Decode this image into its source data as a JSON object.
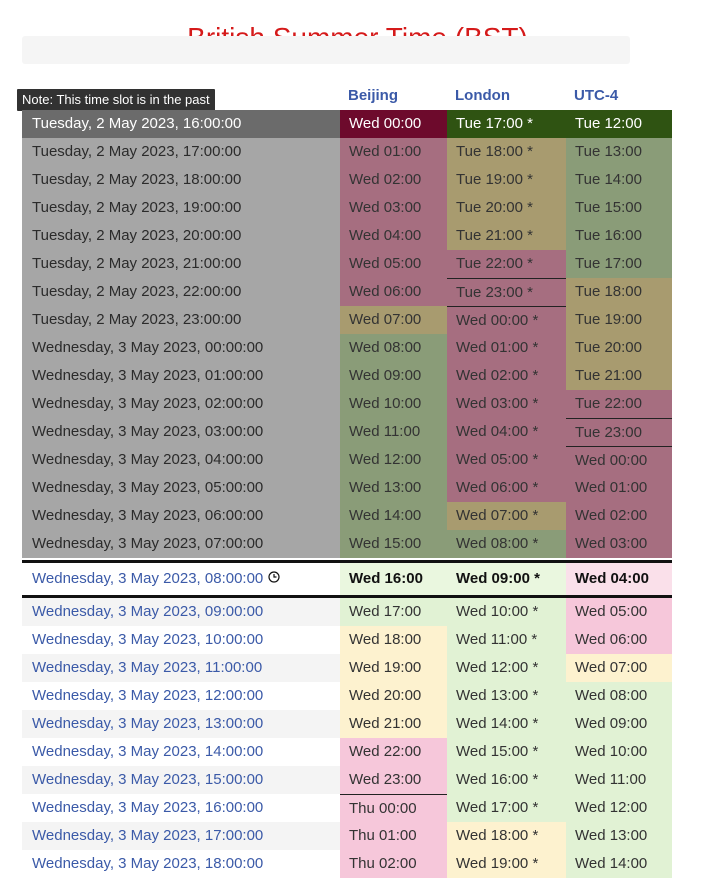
{
  "title": "British Summer Time (BST)",
  "note": "Note: This time slot is in the past",
  "columns": [
    "Beijing",
    "London",
    "UTC-4"
  ],
  "colors": {
    "past_first_c1": "#6d0a2c",
    "past_first_c2": "#2f5312",
    "past_first_c3": "#2f5312",
    "past_pink": "#a66e80",
    "past_tan": "#a89b6f",
    "past_green": "#8a9c78",
    "future_green": "#e1f2d4",
    "future_yellow": "#fdf2cf",
    "future_pink": "#f6c7da",
    "current_green": "#eaf7df",
    "current_pink": "#fae0ea",
    "title_red": "#d51a1a",
    "link_blue": "#3b5aa8"
  },
  "rows": [
    {
      "dt": "Tuesday, 2 May 2023, 16:00:00",
      "c1": "Wed 00:00",
      "c2": "Tue 17:00 *",
      "c3": "Tue 12:00",
      "s": "past",
      "b": [
        "past_first_c1",
        "past_first_c2",
        "past_first_c3"
      ]
    },
    {
      "dt": "Tuesday, 2 May 2023, 17:00:00",
      "c1": "Wed 01:00",
      "c2": "Tue 18:00 *",
      "c3": "Tue 13:00",
      "s": "past",
      "b": [
        "past_pink",
        "past_tan",
        "past_green"
      ]
    },
    {
      "dt": "Tuesday, 2 May 2023, 18:00:00",
      "c1": "Wed 02:00",
      "c2": "Tue 19:00 *",
      "c3": "Tue 14:00",
      "s": "past",
      "b": [
        "past_pink",
        "past_tan",
        "past_green"
      ]
    },
    {
      "dt": "Tuesday, 2 May 2023, 19:00:00",
      "c1": "Wed 03:00",
      "c2": "Tue 20:00 *",
      "c3": "Tue 15:00",
      "s": "past",
      "b": [
        "past_pink",
        "past_tan",
        "past_green"
      ]
    },
    {
      "dt": "Tuesday, 2 May 2023, 20:00:00",
      "c1": "Wed 04:00",
      "c2": "Tue 21:00 *",
      "c3": "Tue 16:00",
      "s": "past",
      "b": [
        "past_pink",
        "past_tan",
        "past_green"
      ]
    },
    {
      "dt": "Tuesday, 2 May 2023, 21:00:00",
      "c1": "Wed 05:00",
      "c2": "Tue 22:00 *",
      "c3": "Tue 17:00",
      "s": "past",
      "b": [
        "past_pink",
        "past_pink",
        "past_green"
      ]
    },
    {
      "dt": "Tuesday, 2 May 2023, 22:00:00",
      "c1": "Wed 06:00",
      "c2": "Tue 23:00 *",
      "c3": "Tue 18:00",
      "s": "past",
      "b": [
        "past_pink",
        "past_pink",
        "past_tan"
      ]
    },
    {
      "dt": "Tuesday, 2 May 2023, 23:00:00",
      "c1": "Wed 07:00",
      "c2": "Wed 00:00 *",
      "c3": "Tue 19:00",
      "s": "past",
      "b": [
        "past_tan",
        "past_pink",
        "past_tan"
      ]
    },
    {
      "dt": "Wednesday, 3 May 2023, 00:00:00",
      "c1": "Wed 08:00",
      "c2": "Wed 01:00 *",
      "c3": "Tue 20:00",
      "s": "past",
      "b": [
        "past_green",
        "past_pink",
        "past_tan"
      ]
    },
    {
      "dt": "Wednesday, 3 May 2023, 01:00:00",
      "c1": "Wed 09:00",
      "c2": "Wed 02:00 *",
      "c3": "Tue 21:00",
      "s": "past",
      "b": [
        "past_green",
        "past_pink",
        "past_tan"
      ]
    },
    {
      "dt": "Wednesday, 3 May 2023, 02:00:00",
      "c1": "Wed 10:00",
      "c2": "Wed 03:00 *",
      "c3": "Tue 22:00",
      "s": "past",
      "b": [
        "past_green",
        "past_pink",
        "past_pink"
      ]
    },
    {
      "dt": "Wednesday, 3 May 2023, 03:00:00",
      "c1": "Wed 11:00",
      "c2": "Wed 04:00 *",
      "c3": "Tue 23:00",
      "s": "past",
      "b": [
        "past_green",
        "past_pink",
        "past_pink"
      ]
    },
    {
      "dt": "Wednesday, 3 May 2023, 04:00:00",
      "c1": "Wed 12:00",
      "c2": "Wed 05:00 *",
      "c3": "Wed 00:00",
      "s": "past",
      "b": [
        "past_green",
        "past_pink",
        "past_pink"
      ]
    },
    {
      "dt": "Wednesday, 3 May 2023, 05:00:00",
      "c1": "Wed 13:00",
      "c2": "Wed 06:00 *",
      "c3": "Wed 01:00",
      "s": "past",
      "b": [
        "past_green",
        "past_pink",
        "past_pink"
      ]
    },
    {
      "dt": "Wednesday, 3 May 2023, 06:00:00",
      "c1": "Wed 14:00",
      "c2": "Wed 07:00 *",
      "c3": "Wed 02:00",
      "s": "past",
      "b": [
        "past_green",
        "past_tan",
        "past_pink"
      ]
    },
    {
      "dt": "Wednesday, 3 May 2023, 07:00:00",
      "c1": "Wed 15:00",
      "c2": "Wed 08:00 *",
      "c3": "Wed 03:00",
      "s": "past",
      "b": [
        "past_green",
        "past_green",
        "past_pink"
      ]
    },
    {
      "dt": "Wednesday, 3 May 2023, 08:00:00",
      "c1": "Wed 16:00",
      "c2": "Wed 09:00 *",
      "c3": "Wed 04:00",
      "s": "current",
      "b": [
        "current_green",
        "current_green",
        "current_pink"
      ]
    },
    {
      "dt": "Wednesday, 3 May 2023, 09:00:00",
      "c1": "Wed 17:00",
      "c2": "Wed 10:00 *",
      "c3": "Wed 05:00",
      "s": "future",
      "b": [
        "future_green",
        "future_green",
        "future_pink"
      ]
    },
    {
      "dt": "Wednesday, 3 May 2023, 10:00:00",
      "c1": "Wed 18:00",
      "c2": "Wed 11:00 *",
      "c3": "Wed 06:00",
      "s": "future",
      "b": [
        "future_yellow",
        "future_green",
        "future_pink"
      ]
    },
    {
      "dt": "Wednesday, 3 May 2023, 11:00:00",
      "c1": "Wed 19:00",
      "c2": "Wed 12:00 *",
      "c3": "Wed 07:00",
      "s": "future",
      "b": [
        "future_yellow",
        "future_green",
        "future_yellow"
      ]
    },
    {
      "dt": "Wednesday, 3 May 2023, 12:00:00",
      "c1": "Wed 20:00",
      "c2": "Wed 13:00 *",
      "c3": "Wed 08:00",
      "s": "future",
      "b": [
        "future_yellow",
        "future_green",
        "future_green"
      ]
    },
    {
      "dt": "Wednesday, 3 May 2023, 13:00:00",
      "c1": "Wed 21:00",
      "c2": "Wed 14:00 *",
      "c3": "Wed 09:00",
      "s": "future",
      "b": [
        "future_yellow",
        "future_green",
        "future_green"
      ]
    },
    {
      "dt": "Wednesday, 3 May 2023, 14:00:00",
      "c1": "Wed 22:00",
      "c2": "Wed 15:00 *",
      "c3": "Wed 10:00",
      "s": "future",
      "b": [
        "future_pink",
        "future_green",
        "future_green"
      ]
    },
    {
      "dt": "Wednesday, 3 May 2023, 15:00:00",
      "c1": "Wed 23:00",
      "c2": "Wed 16:00 *",
      "c3": "Wed 11:00",
      "s": "future",
      "b": [
        "future_pink",
        "future_green",
        "future_green"
      ]
    },
    {
      "dt": "Wednesday, 3 May 2023, 16:00:00",
      "c1": "Thu 00:00",
      "c2": "Wed 17:00 *",
      "c3": "Wed 12:00",
      "s": "future",
      "b": [
        "future_pink",
        "future_green",
        "future_green"
      ]
    },
    {
      "dt": "Wednesday, 3 May 2023, 17:00:00",
      "c1": "Thu 01:00",
      "c2": "Wed 18:00 *",
      "c3": "Wed 13:00",
      "s": "future",
      "b": [
        "future_pink",
        "future_yellow",
        "future_green"
      ]
    },
    {
      "dt": "Wednesday, 3 May 2023, 18:00:00",
      "c1": "Thu 02:00",
      "c2": "Wed 19:00 *",
      "c3": "Wed 14:00",
      "s": "future",
      "b": [
        "future_pink",
        "future_yellow",
        "future_green"
      ]
    }
  ]
}
